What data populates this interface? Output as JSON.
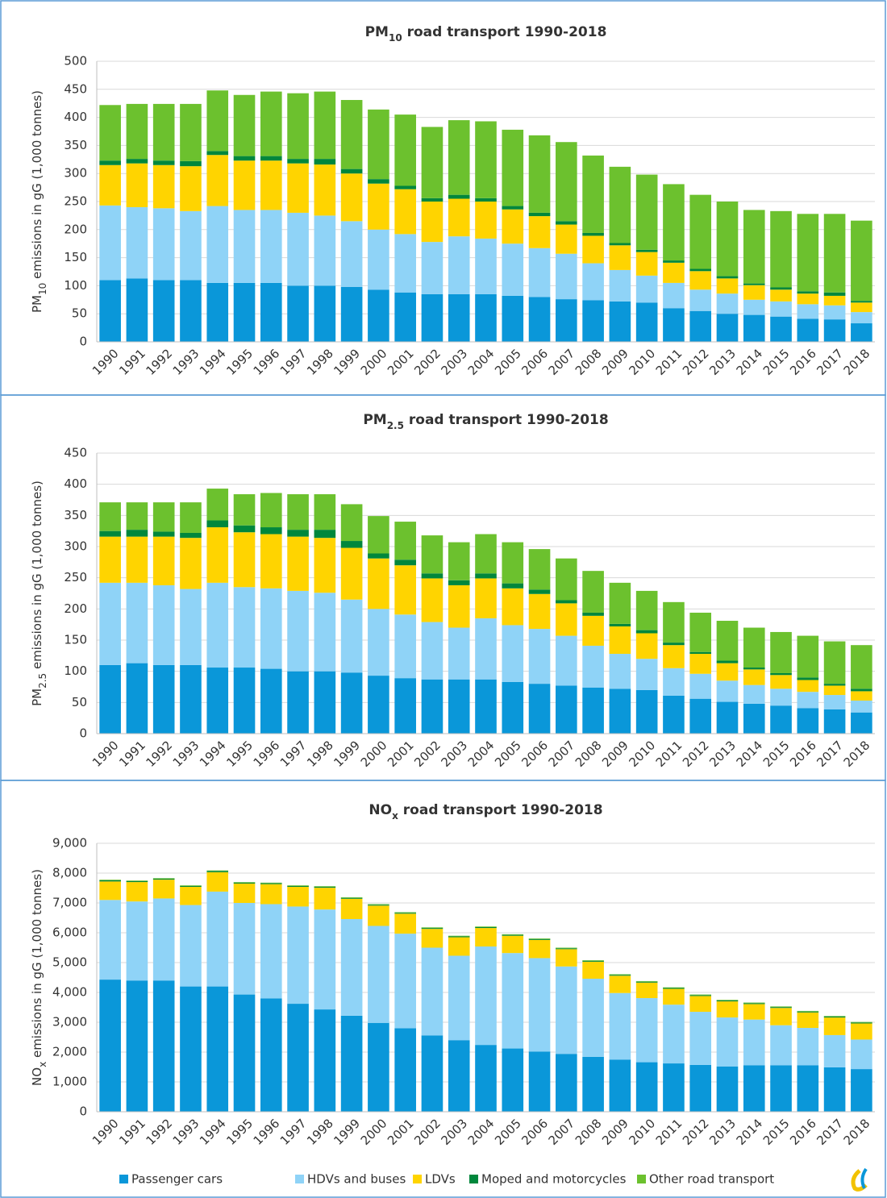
{
  "legend": [
    {
      "name": "Passenger cars",
      "color": "#0a97d9"
    },
    {
      "name": "HDVs and buses",
      "color": "#8fd3f7"
    },
    {
      "name": "LDVs",
      "color": "#ffd400"
    },
    {
      "name": "Moped and motorcycles",
      "color": "#00873c"
    },
    {
      "name": "Other road transport",
      "color": "#6cc12e"
    }
  ],
  "chart_data": [
    {
      "type": "stacked_bar",
      "title": [
        "PM",
        "10",
        " road transport 1990-2018"
      ],
      "y_label": [
        "PM",
        "10",
        " emissions in gG (1,000 tonnes)"
      ],
      "categories": [
        "1990",
        "1991",
        "1992",
        "1993",
        "1994",
        "1995",
        "1996",
        "1997",
        "1998",
        "1999",
        "2000",
        "2001",
        "2002",
        "2003",
        "2004",
        "2005",
        "2006",
        "2007",
        "2008",
        "2009",
        "2010",
        "2011",
        "2012",
        "2013",
        "2014",
        "2015",
        "2016",
        "2017",
        "2018"
      ],
      "ylim": [
        0,
        500
      ],
      "yticks": [
        0,
        50,
        100,
        150,
        200,
        250,
        300,
        350,
        400,
        450,
        500
      ],
      "grid": true,
      "series": [
        {
          "values": [
            110,
            113,
            110,
            110,
            105,
            105,
            105,
            100,
            100,
            98,
            93,
            88,
            85,
            85,
            85,
            82,
            80,
            76,
            74,
            72,
            70,
            60,
            55,
            50,
            48,
            45,
            41,
            40,
            33
          ]
        },
        {
          "values": [
            133,
            127,
            128,
            123,
            137,
            130,
            130,
            130,
            125,
            117,
            107,
            104,
            93,
            103,
            99,
            93,
            87,
            81,
            66,
            56,
            48,
            45,
            38,
            36,
            27,
            27,
            26,
            25,
            20
          ]
        },
        {
          "values": [
            72,
            78,
            77,
            80,
            91,
            88,
            88,
            88,
            91,
            85,
            82,
            80,
            72,
            67,
            66,
            61,
            57,
            52,
            49,
            44,
            42,
            36,
            33,
            27,
            26,
            21,
            19,
            17,
            17
          ]
        },
        {
          "values": [
            8,
            8,
            8,
            9,
            7,
            8,
            8,
            8,
            10,
            8,
            8,
            6,
            6,
            7,
            6,
            6,
            6,
            6,
            5,
            4,
            4,
            4,
            4,
            4,
            3,
            4,
            4,
            6,
            3
          ]
        },
        {
          "values": [
            99,
            98,
            101,
            102,
            108,
            109,
            115,
            117,
            120,
            123,
            124,
            127,
            127,
            133,
            137,
            136,
            138,
            141,
            138,
            136,
            134,
            136,
            132,
            133,
            131,
            136,
            138,
            140,
            143
          ]
        }
      ]
    },
    {
      "type": "stacked_bar",
      "title": [
        "PM",
        "2.5",
        " road transport 1990-2018"
      ],
      "y_label": [
        "PM",
        "2.5",
        " emissions in gG (1,000 tonnes)"
      ],
      "categories": [
        "1990",
        "1991",
        "1992",
        "1993",
        "1994",
        "1995",
        "1996",
        "1997",
        "1998",
        "1999",
        "2000",
        "2001",
        "2002",
        "2003",
        "2004",
        "2005",
        "2006",
        "2007",
        "2008",
        "2009",
        "2010",
        "2011",
        "2012",
        "2013",
        "2014",
        "2015",
        "2016",
        "2017",
        "2018"
      ],
      "ylim": [
        0,
        450
      ],
      "yticks": [
        0,
        50,
        100,
        150,
        200,
        250,
        300,
        350,
        400,
        450
      ],
      "grid": true,
      "series": [
        {
          "values": [
            110,
            113,
            110,
            110,
            106,
            106,
            104,
            100,
            100,
            98,
            93,
            89,
            87,
            87,
            87,
            83,
            80,
            77,
            74,
            72,
            70,
            61,
            56,
            51,
            48,
            45,
            41,
            39,
            34
          ]
        },
        {
          "values": [
            132,
            129,
            128,
            122,
            136,
            129,
            129,
            129,
            126,
            117,
            107,
            102,
            92,
            83,
            98,
            91,
            88,
            80,
            67,
            56,
            50,
            44,
            40,
            34,
            30,
            27,
            26,
            23,
            19
          ]
        },
        {
          "values": [
            74,
            74,
            78,
            82,
            89,
            88,
            87,
            87,
            88,
            83,
            81,
            79,
            70,
            68,
            64,
            59,
            56,
            52,
            48,
            44,
            41,
            37,
            32,
            28,
            25,
            22,
            19,
            15,
            15
          ]
        },
        {
          "values": [
            9,
            11,
            8,
            8,
            11,
            11,
            11,
            11,
            13,
            11,
            8,
            9,
            8,
            8,
            8,
            8,
            7,
            5,
            5,
            4,
            5,
            4,
            3,
            4,
            3,
            3,
            4,
            3,
            4
          ]
        },
        {
          "values": [
            46,
            44,
            47,
            49,
            51,
            50,
            55,
            57,
            57,
            59,
            60,
            61,
            61,
            61,
            63,
            66,
            65,
            67,
            67,
            66,
            63,
            65,
            63,
            64,
            64,
            66,
            67,
            68,
            70
          ]
        }
      ]
    },
    {
      "type": "stacked_bar",
      "title": [
        "NO",
        "x",
        " road transport 1990-2018"
      ],
      "y_label": [
        "NO",
        "x",
        " emissions in gG (1,000 tonnes)"
      ],
      "categories": [
        "1990",
        "1991",
        "1992",
        "1993",
        "1994",
        "1995",
        "1996",
        "1997",
        "1998",
        "1999",
        "2000",
        "2001",
        "2002",
        "2003",
        "2004",
        "2005",
        "2006",
        "2007",
        "2008",
        "2009",
        "2010",
        "2011",
        "2012",
        "2013",
        "2014",
        "2015",
        "2016",
        "2017",
        "2018"
      ],
      "ylim": [
        0,
        9000
      ],
      "yticks": [
        0,
        {
          "value": 1000,
          "label": "1,000"
        },
        {
          "value": 2000,
          "label": "2,000"
        },
        {
          "value": 3000,
          "label": "3,000"
        },
        {
          "value": 4000,
          "label": "4,000"
        },
        {
          "value": 5000,
          "label": "5,000"
        },
        {
          "value": 6000,
          "label": "6,000"
        },
        {
          "value": 7000,
          "label": "7,000"
        },
        {
          "value": 8000,
          "label": "8,000"
        },
        {
          "value": 9000,
          "label": "9,000"
        }
      ],
      "grid": true,
      "series": [
        {
          "values": [
            4430,
            4400,
            4400,
            4200,
            4200,
            3930,
            3800,
            3620,
            3430,
            3220,
            2980,
            2800,
            2560,
            2400,
            2240,
            2120,
            2020,
            1940,
            1840,
            1750,
            1660,
            1620,
            1570,
            1520,
            1560,
            1560,
            1560,
            1490,
            1430
          ]
        },
        {
          "values": [
            2670,
            2650,
            2750,
            2730,
            3180,
            3070,
            3160,
            3260,
            3350,
            3240,
            3250,
            3170,
            2940,
            2830,
            3300,
            3200,
            3130,
            2930,
            2620,
            2230,
            2150,
            1970,
            1780,
            1640,
            1530,
            1340,
            1250,
            1080,
            990
          ]
        },
        {
          "values": [
            620,
            650,
            630,
            610,
            650,
            650,
            670,
            660,
            730,
            680,
            680,
            670,
            630,
            620,
            620,
            580,
            610,
            580,
            570,
            580,
            520,
            530,
            530,
            540,
            520,
            580,
            520,
            590,
            540
          ]
        },
        {
          "values": [
            40,
            30,
            30,
            30,
            40,
            30,
            30,
            30,
            30,
            30,
            30,
            30,
            30,
            30,
            30,
            30,
            30,
            30,
            30,
            30,
            30,
            30,
            30,
            30,
            30,
            30,
            30,
            30,
            30
          ]
        },
        {
          "values": [
            20,
            20,
            20,
            20,
            20,
            20,
            20,
            20,
            20,
            20,
            20,
            20,
            20,
            20,
            20,
            20,
            20,
            20,
            20,
            20,
            20,
            20,
            20,
            20,
            20,
            20,
            20,
            20,
            20
          ]
        }
      ]
    }
  ]
}
